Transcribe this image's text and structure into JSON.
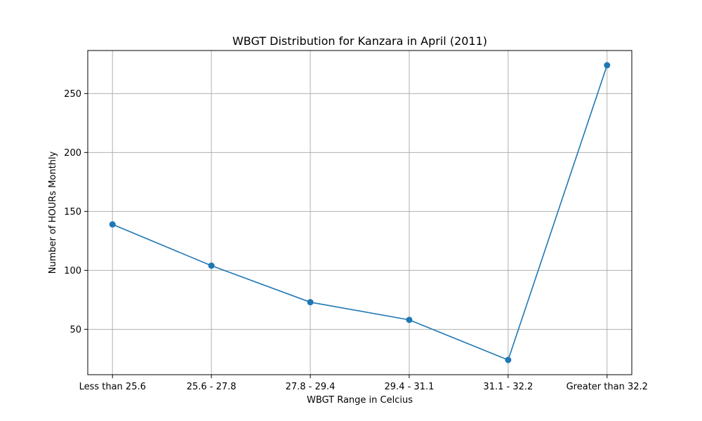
{
  "chart_data": {
    "type": "line",
    "title": "WBGT Distribution for Kanzara in April (2011)",
    "xlabel": "WBGT Range in Celcius",
    "ylabel": "Number of HOURs Monthly",
    "categories": [
      "Less than 25.6",
      "25.6 - 27.8",
      "27.8 - 29.4",
      "29.4 - 31.1",
      "31.1 - 32.2",
      "Greater than 32.2"
    ],
    "series": [
      {
        "values": [
          139,
          104,
          73,
          58,
          24,
          274
        ],
        "color": "#1f77b4",
        "marker": "circle"
      }
    ],
    "ylim": [
      11.5,
      286.5
    ],
    "yticks": [
      50,
      100,
      150,
      200,
      250
    ],
    "grid": true,
    "legend": "none"
  }
}
